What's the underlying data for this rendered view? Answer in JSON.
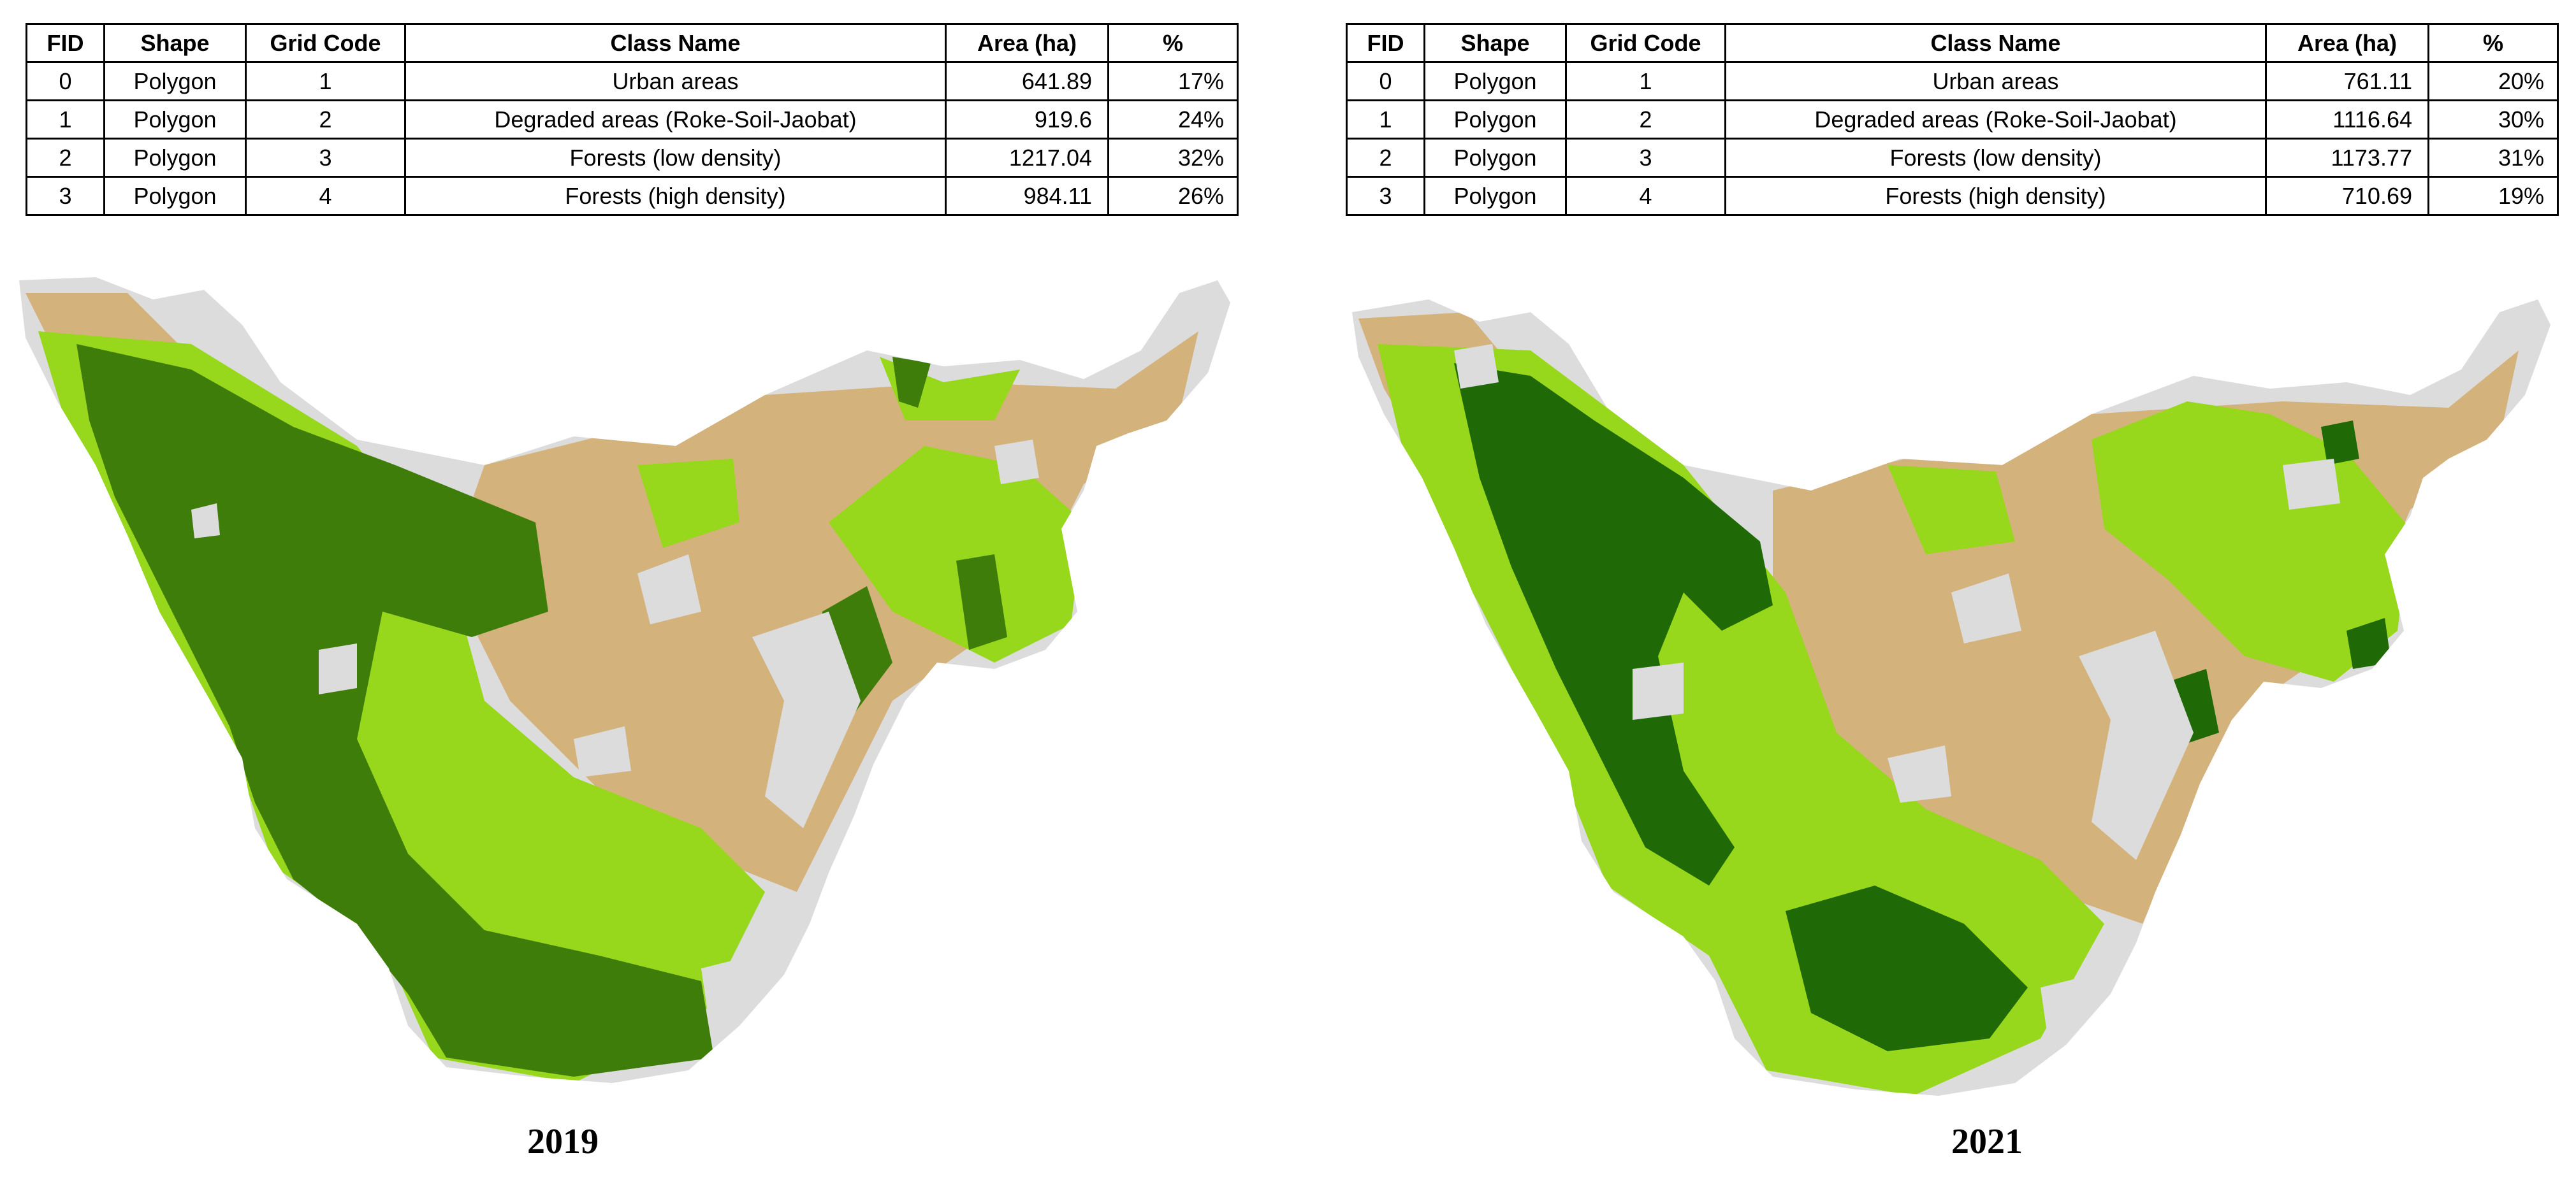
{
  "colors": {
    "urban": "#dcdcdc",
    "degraded": "#d4b27c",
    "forest_low": "#97d71c",
    "forest_high": "#3f7d0b",
    "forest_high_2021": "#1f6a06"
  },
  "headers": {
    "fid": "FID",
    "shape": "Shape",
    "grid_code": "Grid Code",
    "class_name": "Class Name",
    "area": "Area (ha)",
    "pct": "%"
  },
  "maps": [
    {
      "year": "2019",
      "rows": [
        {
          "fid": "0",
          "shape": "Polygon",
          "grid": "1",
          "name": "Urban areas",
          "area": "641.89",
          "pct": "17%"
        },
        {
          "fid": "1",
          "shape": "Polygon",
          "grid": "2",
          "name": "Degraded areas (Roke-Soil-Jaobat)",
          "area": "919.6",
          "pct": "24%"
        },
        {
          "fid": "2",
          "shape": "Polygon",
          "grid": "3",
          "name": "Forests (low density)",
          "area": "1217.04",
          "pct": "32%"
        },
        {
          "fid": "3",
          "shape": "Polygon",
          "grid": "4",
          "name": "Forests (high density)",
          "area": "984.11",
          "pct": "26%"
        }
      ]
    },
    {
      "year": "2021",
      "rows": [
        {
          "fid": "0",
          "shape": "Polygon",
          "grid": "1",
          "name": "Urban areas",
          "area": "761.11",
          "pct": "20%"
        },
        {
          "fid": "1",
          "shape": "Polygon",
          "grid": "2",
          "name": "Degraded areas (Roke-Soil-Jaobat)",
          "area": "1116.64",
          "pct": "30%"
        },
        {
          "fid": "2",
          "shape": "Polygon",
          "grid": "3",
          "name": "Forests (low density)",
          "area": "1173.77",
          "pct": "31%"
        },
        {
          "fid": "3",
          "shape": "Polygon",
          "grid": "4",
          "name": "Forests (high density)",
          "area": "710.69",
          "pct": "19%"
        }
      ]
    }
  ]
}
